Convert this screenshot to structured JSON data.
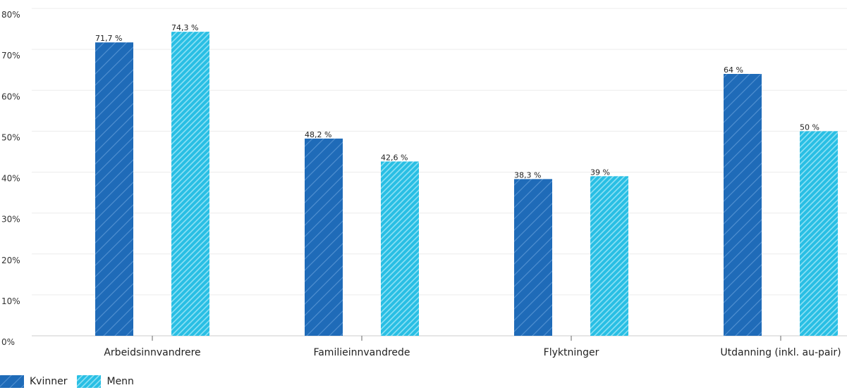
{
  "chart_data": {
    "type": "bar",
    "categories": [
      "Arbeidsinnvandrere",
      "Familieinnvandrede",
      "Flyktninger",
      "Utdanning (inkl. au-pair)"
    ],
    "series": [
      {
        "name": "Kvinner",
        "values": [
          71.7,
          48.2,
          38.3,
          64
        ],
        "labels": [
          "71,7 %",
          "48,2 %",
          "38,3 %",
          "64 %"
        ],
        "color": "#1f6bb8",
        "pattern": "diagonal-hatch-light"
      },
      {
        "name": "Menn",
        "values": [
          74.3,
          42.6,
          39,
          50
        ],
        "labels": [
          "74,3 %",
          "42,6 %",
          "39 %",
          "50 %"
        ],
        "color": "#2ec2e6",
        "pattern": "diagonal-hatch-dense"
      }
    ],
    "yticks": [
      0,
      10,
      20,
      30,
      40,
      50,
      60,
      70,
      80
    ],
    "ytick_labels": [
      "0%",
      "10%",
      "20%",
      "30%",
      "40%",
      "50%",
      "60%",
      "70%",
      "80%"
    ],
    "ylim": [
      0,
      80
    ],
    "xlabel": "",
    "ylabel": "",
    "title": "",
    "grid": true,
    "legend_position": "bottom-left"
  }
}
